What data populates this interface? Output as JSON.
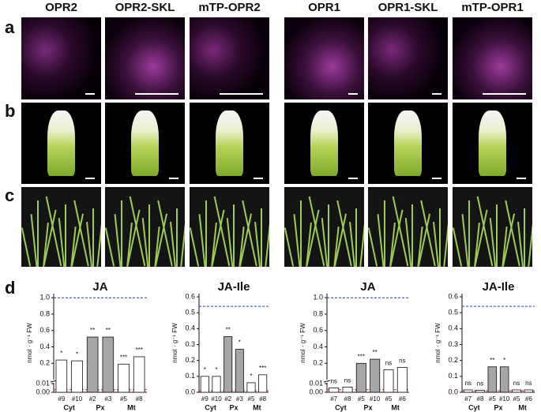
{
  "column_headers": [
    "OPR2",
    "OPR2-SKL",
    "mTP-OPR2",
    "OPR1",
    "OPR1-SKL",
    "mTP-OPR1"
  ],
  "row_labels": [
    "a",
    "b",
    "c",
    "d"
  ],
  "chart_data": [
    {
      "type": "bar",
      "title": "JA",
      "y_label": "nmol · g⁻¹ FW",
      "categories": [
        "#9",
        "#10",
        "#2",
        "#3",
        "#5",
        "#8"
      ],
      "groups": [
        "Cyt",
        "Px",
        "Mt"
      ],
      "values": [
        0.24,
        0.23,
        0.52,
        0.52,
        0.19,
        0.28
      ],
      "colors": [
        "#ffffff",
        "#ffffff",
        "#a6a6a6",
        "#a6a6a6",
        "#ffffff",
        "#ffffff"
      ],
      "annotations": [
        "*",
        "*",
        "**",
        "**",
        "***",
        "***"
      ],
      "ylim": [
        0,
        1.05
      ],
      "axis_break": 0.01,
      "yticks": [
        {
          "value": 0,
          "label": "0.00"
        },
        0.01,
        0.2,
        0.4,
        0.6,
        0.8,
        {
          "value": 1,
          "label": "1.0"
        }
      ],
      "reference_lines": [
        {
          "value": 1,
          "color": "#2b3fa0"
        },
        {
          "value": 0.003,
          "color": "#d62020"
        }
      ]
    },
    {
      "type": "bar",
      "title": "JA-Ile",
      "y_label": "nmol · g⁻¹ FW",
      "categories": [
        "#9",
        "#10",
        "#2",
        "#3",
        "#5",
        "#8"
      ],
      "groups": [
        "Cyt",
        "Px",
        "Mt"
      ],
      "values": [
        0.1,
        0.1,
        0.35,
        0.27,
        0.06,
        0.11
      ],
      "colors": [
        "#ffffff",
        "#ffffff",
        "#a6a6a6",
        "#a6a6a6",
        "#ffffff",
        "#ffffff"
      ],
      "annotations": [
        "*",
        "*",
        "**",
        "*",
        "*",
        "***"
      ],
      "ylim": [
        0,
        0.62
      ],
      "yticks": [
        {
          "value": 0,
          "label": "0.0"
        },
        0.1,
        0.2,
        0.3,
        0.4,
        0.5,
        0.6
      ],
      "reference_lines": [
        {
          "value": 0.54,
          "color": "#2b3fa0"
        },
        {
          "value": 0.01,
          "color": "#d62020"
        }
      ]
    },
    {
      "type": "bar",
      "title": "JA",
      "y_label": "nmol · g⁻¹ FW",
      "categories": [
        "#7",
        "#8",
        "#5",
        "#10",
        "#5",
        "#6"
      ],
      "groups": [
        "Cyt",
        "Px",
        "Mt"
      ],
      "values": [
        0.005,
        0.006,
        0.2,
        0.25,
        0.12,
        0.15
      ],
      "colors": [
        "#ffffff",
        "#ffffff",
        "#a6a6a6",
        "#a6a6a6",
        "#ffffff",
        "#ffffff"
      ],
      "annotations": [
        "ns",
        "ns",
        "***",
        "**",
        "ns",
        "ns"
      ],
      "ylim": [
        0,
        1.05
      ],
      "axis_break": 0.01,
      "yticks": [
        {
          "value": 0,
          "label": "0.00"
        },
        0.01,
        0.2,
        0.4,
        0.6,
        0.8,
        {
          "value": 1,
          "label": "1.0"
        }
      ],
      "reference_lines": [
        {
          "value": 1,
          "color": "#2b3fa0"
        },
        {
          "value": 0.003,
          "color": "#d62020"
        }
      ]
    },
    {
      "type": "bar",
      "title": "JA-Ile",
      "y_label": "nmol · g⁻¹ FW",
      "categories": [
        "#7",
        "#8",
        "#5",
        "#10",
        "#5",
        "#6"
      ],
      "groups": [
        "Cyt",
        "Px",
        "Mt"
      ],
      "values": [
        0.015,
        0.012,
        0.16,
        0.16,
        0.015,
        0.015
      ],
      "colors": [
        "#ffffff",
        "#ffffff",
        "#a6a6a6",
        "#a6a6a6",
        "#ffffff",
        "#ffffff"
      ],
      "annotations": [
        "ns",
        "ns",
        "**",
        "*",
        "ns",
        "ns"
      ],
      "ylim": [
        0,
        0.62
      ],
      "yticks": [
        {
          "value": 0,
          "label": "0.0"
        },
        0.1,
        0.2,
        0.3,
        0.4,
        0.5,
        0.6
      ],
      "reference_lines": [
        {
          "value": 0.54,
          "color": "#2b3fa0"
        },
        {
          "value": 0.01,
          "color": "#d62020"
        }
      ]
    }
  ]
}
